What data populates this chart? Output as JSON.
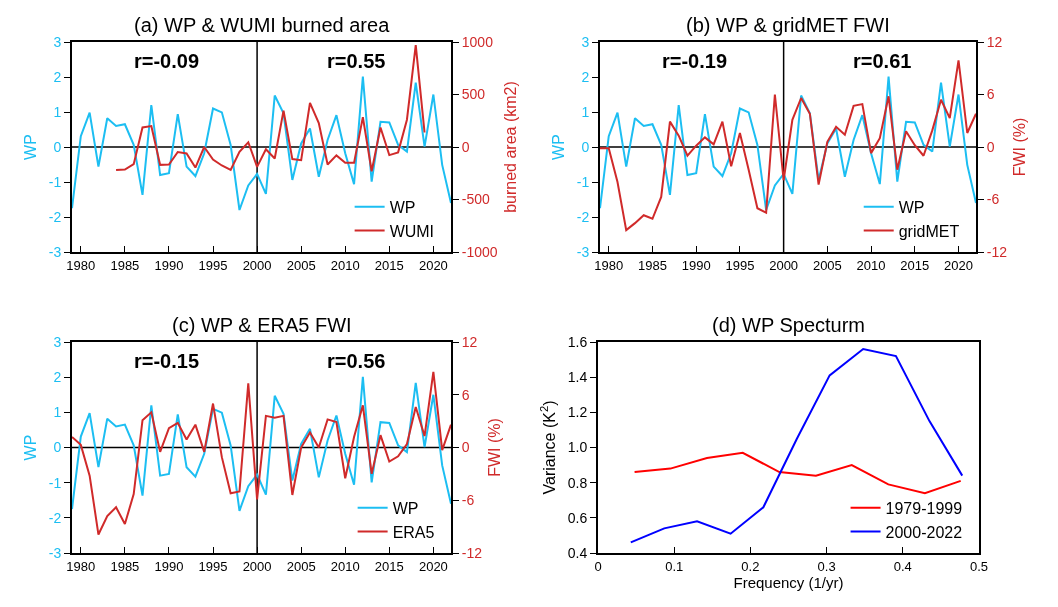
{
  "chart_data": [
    {
      "type": "line",
      "title": "(a) WP & WUMI burned area",
      "ylabel": "WP",
      "y2label": "burned area (km2)",
      "annotations": [
        "r=-0.09",
        "r=0.55"
      ],
      "x": [
        1979,
        1980,
        1981,
        1982,
        1983,
        1984,
        1985,
        1986,
        1987,
        1988,
        1989,
        1990,
        1991,
        1992,
        1993,
        1994,
        1995,
        1996,
        1997,
        1998,
        1999,
        2000,
        2001,
        2002,
        2003,
        2004,
        2005,
        2006,
        2007,
        2008,
        2009,
        2010,
        2011,
        2012,
        2013,
        2014,
        2015,
        2016,
        2017,
        2018,
        2019,
        2020,
        2021,
        2022
      ],
      "series": [
        {
          "name": "WP",
          "color": "#1cbef2",
          "values": [
            -1.75,
            0.31,
            0.98,
            -0.56,
            0.82,
            0.6,
            0.65,
            0.06,
            -1.37,
            1.2,
            -0.8,
            -0.75,
            0.94,
            -0.56,
            -0.83,
            -0.18,
            1.1,
            0.99,
            0.06,
            -1.8,
            -1.1,
            -0.77,
            -1.34,
            1.47,
            0.96,
            -0.94,
            0.1,
            0.53,
            -0.85,
            0.2,
            0.91,
            -0.18,
            -1.06,
            2.01,
            -0.99,
            0.72,
            0.7,
            0.06,
            -0.13,
            1.84,
            0.01,
            1.5,
            -0.51,
            -1.6
          ]
        },
        {
          "name": "WUMI",
          "color": "#d02a2a",
          "axis": "y2",
          "x": [
            1984,
            1985,
            1986,
            1987,
            1988,
            1989,
            1990,
            1991,
            1992,
            1993,
            1994,
            1995,
            1996,
            1997,
            1998,
            1999,
            2000,
            2001,
            2002,
            2003,
            2004,
            2005,
            2006,
            2007,
            2008,
            2009,
            2010,
            2011,
            2012,
            2013,
            2014,
            2015,
            2016,
            2017,
            2018,
            2019
          ],
          "values": [
            -220,
            -215,
            -163,
            186,
            199,
            -170,
            -167,
            -48,
            -61,
            -196,
            0,
            -119,
            -176,
            -218,
            -45,
            45,
            -189,
            -22,
            -109,
            346,
            -115,
            -125,
            420,
            228,
            -167,
            -80,
            -151,
            -151,
            285,
            -231,
            186,
            -77,
            -51,
            260,
            971,
            138
          ]
        }
      ],
      "xlim": [
        1979,
        2022
      ],
      "xticks": [
        1980,
        1985,
        1990,
        1995,
        2000,
        2005,
        2010,
        2015,
        2020
      ],
      "ylim": [
        -3,
        3
      ],
      "yticks": [
        -3,
        -2,
        -1,
        0,
        1,
        2,
        3
      ],
      "y2lim": [
        -1000,
        1000
      ],
      "y2ticks": [
        -1000,
        -500,
        0,
        500,
        1000
      ],
      "ref_lines": [
        {
          "axis": "y",
          "value": 0,
          "color": "#000000"
        },
        {
          "axis": "x",
          "value": 2000,
          "color": "#000000"
        }
      ],
      "legend": "bottom right",
      "grid": false
    },
    {
      "type": "line",
      "title": "(b) WP & gridMET FWI",
      "ylabel": "WP",
      "y2label": "FWI (%)",
      "annotations": [
        "r=-0.19",
        "r=0.61"
      ],
      "x": [
        1979,
        1980,
        1981,
        1982,
        1983,
        1984,
        1985,
        1986,
        1987,
        1988,
        1989,
        1990,
        1991,
        1992,
        1993,
        1994,
        1995,
        1996,
        1997,
        1998,
        1999,
        2000,
        2001,
        2002,
        2003,
        2004,
        2005,
        2006,
        2007,
        2008,
        2009,
        2010,
        2011,
        2012,
        2013,
        2014,
        2015,
        2016,
        2017,
        2018,
        2019,
        2020,
        2021,
        2022
      ],
      "series": [
        {
          "name": "WP",
          "color": "#1cbef2",
          "values": [
            -1.75,
            0.31,
            0.98,
            -0.56,
            0.82,
            0.6,
            0.65,
            0.06,
            -1.37,
            1.2,
            -0.8,
            -0.75,
            0.94,
            -0.56,
            -0.83,
            -0.18,
            1.1,
            0.99,
            0.06,
            -1.8,
            -1.1,
            -0.77,
            -1.34,
            1.47,
            0.96,
            -0.94,
            0.1,
            0.53,
            -0.85,
            0.2,
            0.91,
            -0.18,
            -1.06,
            2.01,
            -0.99,
            0.72,
            0.7,
            0.06,
            -0.13,
            1.84,
            0.01,
            1.5,
            -0.51,
            -1.6
          ]
        },
        {
          "name": "gridMET",
          "color": "#d02a2a",
          "axis": "y2",
          "values": [
            -0.15,
            -0.15,
            -4.0,
            -9.5,
            -8.7,
            -7.8,
            -8.2,
            -5.7,
            2.9,
            1.3,
            -1.0,
            0.15,
            1.1,
            0.3,
            2.9,
            -2.2,
            1.6,
            -2.6,
            -7.0,
            -7.5,
            6.0,
            -3.8,
            3.1,
            5.6,
            3.8,
            -4.3,
            0.6,
            2.3,
            1.4,
            4.7,
            4.9,
            -0.7,
            1.0,
            5.8,
            -2.6,
            1.8,
            0.2,
            -1.0,
            1.9,
            5.4,
            3.3,
            9.9,
            1.6,
            3.8
          ]
        }
      ],
      "xlim": [
        1979,
        2022
      ],
      "xticks": [
        1980,
        1985,
        1990,
        1995,
        2000,
        2005,
        2010,
        2015,
        2020
      ],
      "ylim": [
        -3,
        3
      ],
      "yticks": [
        -3,
        -2,
        -1,
        0,
        1,
        2,
        3
      ],
      "y2lim": [
        -12,
        12
      ],
      "y2ticks": [
        -12,
        -6,
        0,
        6,
        12
      ],
      "ref_lines": [
        {
          "axis": "y",
          "value": 0,
          "color": "#000000"
        },
        {
          "axis": "x",
          "value": 2000,
          "color": "#000000"
        }
      ],
      "legend": "bottom right",
      "grid": false
    },
    {
      "type": "line",
      "title": "(c) WP & ERA5 FWI",
      "ylabel": "WP",
      "y2label": "FWI (%)",
      "annotations": [
        "r=-0.15",
        "r=0.56"
      ],
      "x": [
        1979,
        1980,
        1981,
        1982,
        1983,
        1984,
        1985,
        1986,
        1987,
        1988,
        1989,
        1990,
        1991,
        1992,
        1993,
        1994,
        1995,
        1996,
        1997,
        1998,
        1999,
        2000,
        2001,
        2002,
        2003,
        2004,
        2005,
        2006,
        2007,
        2008,
        2009,
        2010,
        2011,
        2012,
        2013,
        2014,
        2015,
        2016,
        2017,
        2018,
        2019,
        2020,
        2021,
        2022
      ],
      "series": [
        {
          "name": "WP",
          "color": "#1cbef2",
          "values": [
            -1.75,
            0.31,
            0.98,
            -0.56,
            0.82,
            0.6,
            0.65,
            0.06,
            -1.37,
            1.2,
            -0.8,
            -0.75,
            0.94,
            -0.56,
            -0.83,
            -0.18,
            1.1,
            0.99,
            0.06,
            -1.8,
            -1.1,
            -0.77,
            -1.34,
            1.47,
            0.96,
            -0.94,
            0.1,
            0.53,
            -0.85,
            0.2,
            0.91,
            -0.18,
            -1.06,
            2.01,
            -0.99,
            0.72,
            0.7,
            0.06,
            -0.13,
            1.84,
            0.01,
            1.5,
            -0.51,
            -1.6
          ]
        },
        {
          "name": "ERA5",
          "color": "#d02a2a",
          "axis": "y2",
          "values": [
            1.2,
            0.3,
            -3.2,
            -9.9,
            -7.8,
            -6.8,
            -8.7,
            -5.3,
            3.1,
            4.0,
            -0.5,
            2.2,
            2.8,
            0.9,
            2.6,
            -0.5,
            5.0,
            -1.1,
            -5.2,
            -5.0,
            7.3,
            -5.9,
            3.6,
            3.4,
            3.6,
            -5.4,
            0,
            1.7,
            0,
            3.2,
            2.9,
            -3.5,
            1.2,
            4.8,
            -3.0,
            1.4,
            -1.6,
            -1.0,
            0.4,
            4.6,
            1.3,
            8.6,
            -0.3,
            2.6
          ]
        }
      ],
      "xlim": [
        1979,
        2022
      ],
      "xticks": [
        1980,
        1985,
        1990,
        1995,
        2000,
        2005,
        2010,
        2015,
        2020
      ],
      "ylim": [
        -3,
        3
      ],
      "yticks": [
        -3,
        -2,
        -1,
        0,
        1,
        2,
        3
      ],
      "y2lim": [
        -12,
        12
      ],
      "y2ticks": [
        -12,
        -6,
        0,
        6,
        12
      ],
      "ref_lines": [
        {
          "axis": "y",
          "value": 0,
          "color": "#000000"
        },
        {
          "axis": "x",
          "value": 2000,
          "color": "#000000"
        }
      ],
      "legend": "bottom right",
      "grid": false
    },
    {
      "type": "line",
      "title": "(d) WP Specturm",
      "xlabel": "Frequency (1/yr)",
      "ylabel": "Variance (K$^{2}$)",
      "series": [
        {
          "name": "1979-1999",
          "color": "#ff0000",
          "x": [
            0.048,
            0.095,
            0.143,
            0.19,
            0.238,
            0.286,
            0.333,
            0.381,
            0.429,
            0.476
          ],
          "values": [
            0.86,
            0.88,
            0.94,
            0.97,
            0.86,
            0.84,
            0.9,
            0.79,
            0.74,
            0.81
          ]
        },
        {
          "name": "2000-2022",
          "color": "#0000ff",
          "x": [
            0.043,
            0.087,
            0.13,
            0.174,
            0.217,
            0.261,
            0.304,
            0.348,
            0.391,
            0.435,
            0.478
          ],
          "values": [
            0.46,
            0.54,
            0.58,
            0.51,
            0.66,
            1.05,
            1.41,
            1.56,
            1.52,
            1.15,
            0.84
          ]
        }
      ],
      "xlim": [
        0,
        0.5
      ],
      "xticks": [
        0,
        0.1,
        0.2,
        0.3,
        0.4,
        0.5
      ],
      "ylim": [
        0.4,
        1.6
      ],
      "yticks": [
        0.4,
        0.6,
        0.8,
        {
          "value": 1,
          "label": "1.0"
        },
        1.2,
        1.4,
        1.6
      ],
      "legend": "bottom right",
      "grid": false
    }
  ]
}
